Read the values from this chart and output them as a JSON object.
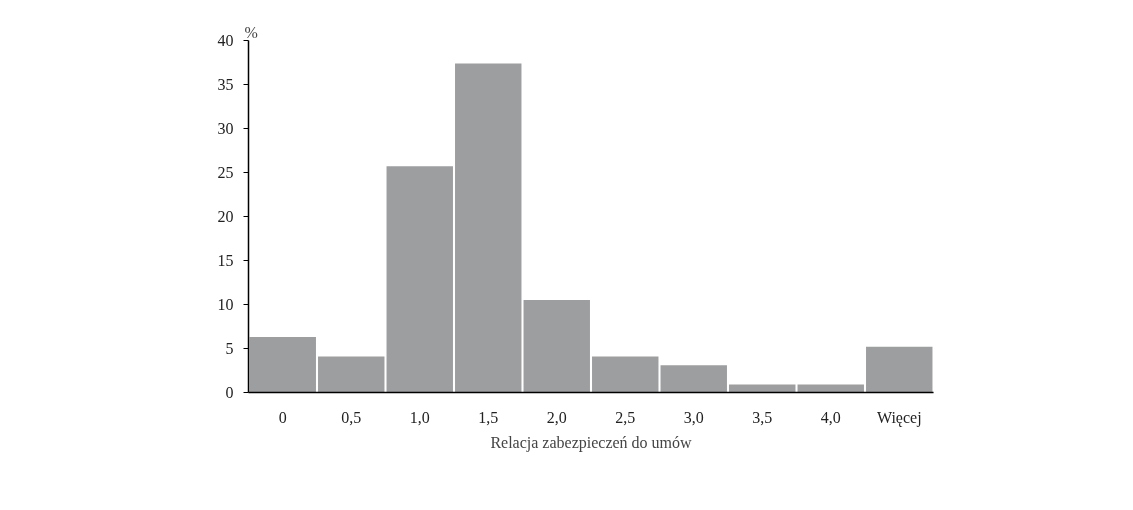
{
  "chart_data": {
    "type": "bar",
    "xlabel": "Relacja zabezpieczeń do umów",
    "ylabel": "%",
    "categories": [
      "0",
      "0,5",
      "1,0",
      "1,5",
      "2,0",
      "2,5",
      "3,0",
      "3,5",
      "4,0",
      "Więcej"
    ],
    "values": [
      6.3,
      4.1,
      25.7,
      37.4,
      10.5,
      4.1,
      3.1,
      0.9,
      0.9,
      5.2
    ],
    "color": "#9d9ea0",
    "ylim": [
      0,
      40
    ],
    "yticks": [
      0,
      5,
      10,
      15,
      20,
      25,
      30,
      35,
      40
    ],
    "grid": false
  }
}
